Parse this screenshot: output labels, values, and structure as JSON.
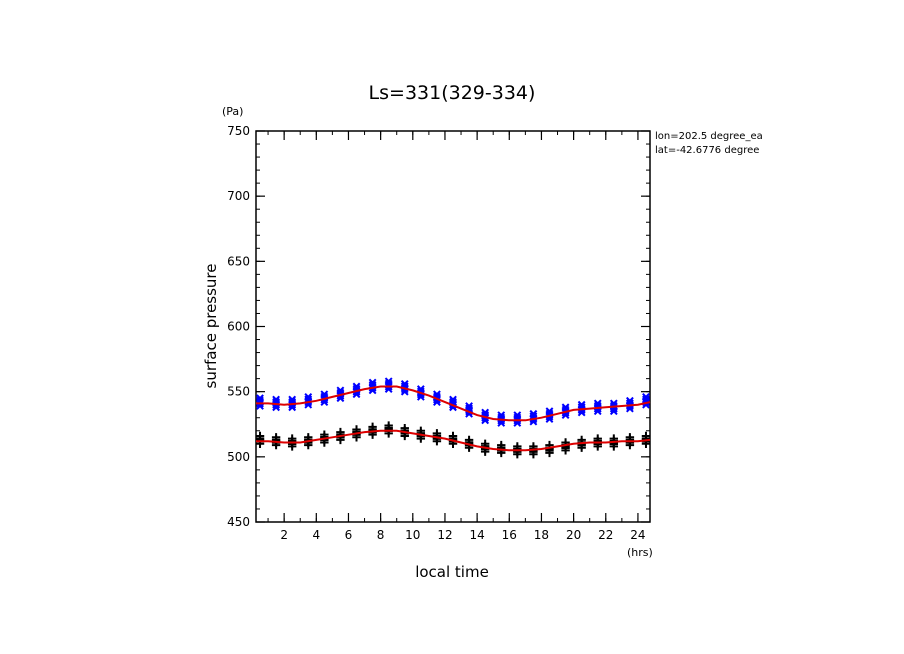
{
  "chart_data": {
    "type": "scatter",
    "title": "Ls=331(329-334)",
    "ylabel": "surface pressure",
    "yunit": "(Pa)",
    "xlabel": "local time",
    "xunit": "(hrs)",
    "xlim": [
      0.25,
      24.75
    ],
    "ylim": [
      450,
      750
    ],
    "xticks": [
      2,
      4,
      6,
      8,
      10,
      12,
      14,
      16,
      18,
      20,
      22,
      24
    ],
    "yticks": [
      450,
      500,
      550,
      600,
      650,
      700,
      750
    ],
    "annotations": [
      "lon=202.5 degree_ea",
      "lat=-42.6776 degree"
    ],
    "colors": {
      "upper": "#0000ff",
      "lower": "#000000",
      "fit": "#dd0000",
      "frame": "#000000"
    },
    "series": [
      {
        "marker": "x",
        "color": "#0000ff",
        "x": [
          0.5,
          1.5,
          2.5,
          3.5,
          4.5,
          5.5,
          6.5,
          7.5,
          8.5,
          9.5,
          10.5,
          11.5,
          12.5,
          13.5,
          14.5,
          15.5,
          16.5,
          17.5,
          18.5,
          19.5,
          20.5,
          21.5,
          22.5,
          23.5,
          24.5
        ],
        "y": [
          542,
          541,
          541,
          543,
          545,
          548,
          551,
          554,
          555,
          553,
          549,
          545,
          541,
          536,
          531,
          529,
          529,
          530,
          532,
          535,
          537,
          538,
          538,
          540,
          543
        ]
      },
      {
        "marker": "+",
        "color": "#000000",
        "x": [
          0.5,
          1.5,
          2.5,
          3.5,
          4.5,
          5.5,
          6.5,
          7.5,
          8.5,
          9.5,
          10.5,
          11.5,
          12.5,
          13.5,
          14.5,
          15.5,
          16.5,
          17.5,
          18.5,
          19.5,
          20.5,
          21.5,
          22.5,
          23.5,
          24.5
        ],
        "y": [
          513,
          512,
          511,
          512,
          514,
          516,
          518,
          520,
          521,
          519,
          517,
          515,
          513,
          510,
          507,
          506,
          505,
          505,
          506,
          508,
          510,
          511,
          511,
          512,
          513
        ]
      }
    ],
    "fits": [
      {
        "color": "#dd0000",
        "x": [
          0.25,
          1,
          2,
          3,
          4,
          5,
          6,
          7,
          8,
          9,
          10,
          11,
          12,
          13,
          14,
          15,
          16,
          17,
          18,
          19,
          20,
          21,
          22,
          23,
          24,
          24.75
        ],
        "y": [
          541,
          541,
          540,
          541,
          543,
          546,
          549,
          552,
          554,
          554,
          551,
          547,
          542,
          537,
          532,
          529,
          528,
          528,
          530,
          533,
          536,
          537,
          538,
          539,
          540,
          542
        ]
      },
      {
        "color": "#dd0000",
        "x": [
          0.25,
          1,
          2,
          3,
          4,
          5,
          6,
          7,
          8,
          9,
          10,
          11,
          12,
          13,
          14,
          15,
          16,
          17,
          18,
          19,
          20,
          21,
          22,
          23,
          24,
          24.75
        ],
        "y": [
          512,
          512,
          511,
          511,
          513,
          515,
          517,
          519,
          520,
          520,
          518,
          516,
          514,
          511,
          508,
          506,
          505,
          505,
          506,
          508,
          510,
          511,
          511,
          512,
          512,
          513
        ]
      }
    ]
  }
}
